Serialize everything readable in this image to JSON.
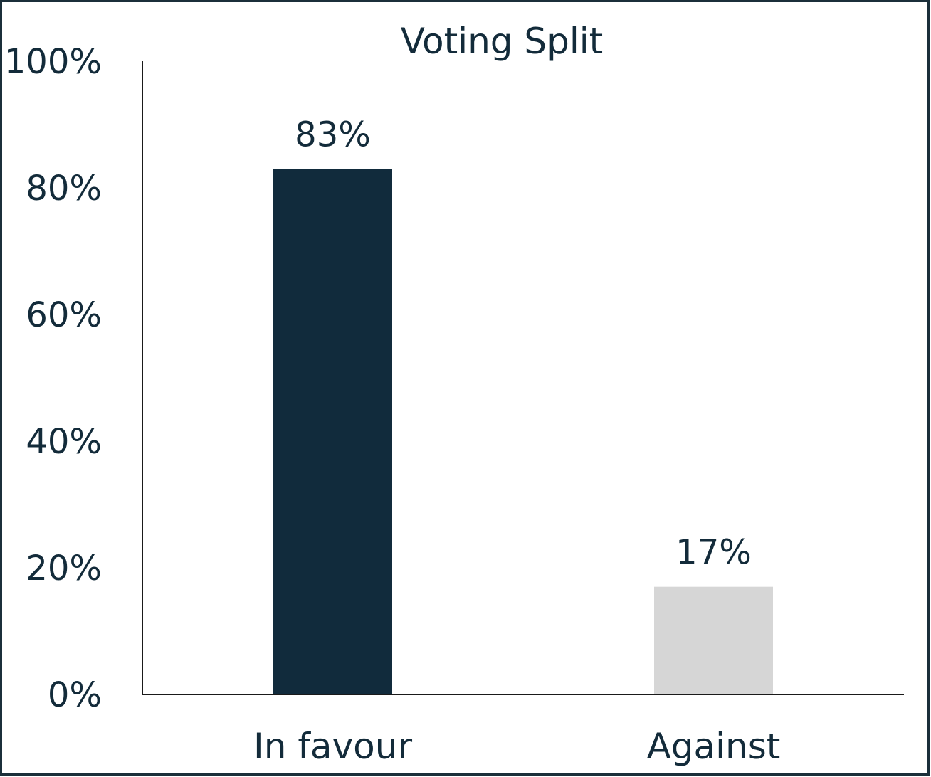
{
  "chart_data": {
    "type": "bar",
    "title": "Voting Split",
    "categories": [
      "In favour",
      "Against"
    ],
    "values": [
      83,
      17
    ],
    "data_labels": [
      "83%",
      "17%"
    ],
    "bar_colors": [
      "#112b3c",
      "#d6d6d6"
    ],
    "text_color": "#132b3a",
    "axis_color": "#1a1a1a",
    "ylim": [
      0,
      100
    ],
    "yticks": [
      0,
      20,
      40,
      60,
      80,
      100
    ],
    "ytick_labels": [
      "0%",
      "20%",
      "40%",
      "60%",
      "80%",
      "100%"
    ],
    "xlabel": "",
    "ylabel": "",
    "grid": false,
    "legend": "none"
  }
}
